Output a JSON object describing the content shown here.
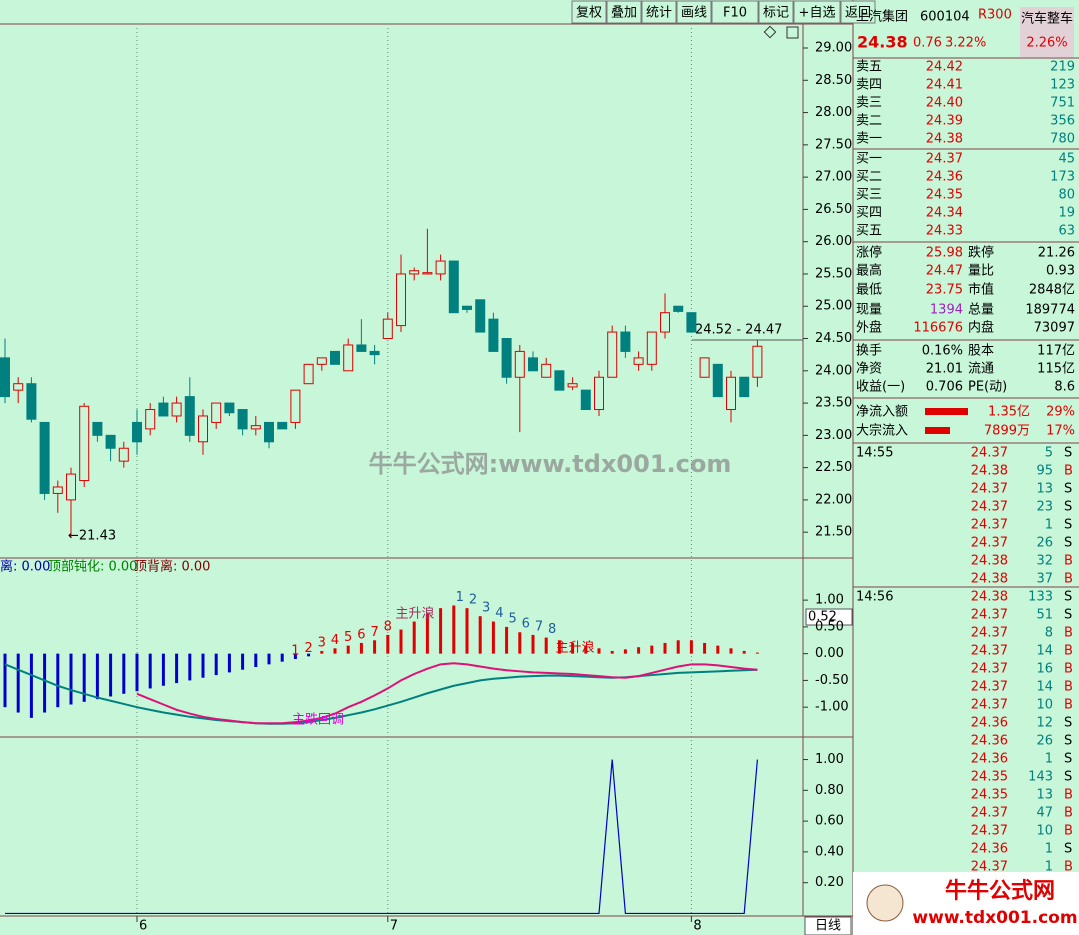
{
  "toolbar": {
    "buttons": [
      "复权",
      "叠加",
      "统计",
      "画线",
      "F10",
      "标记",
      "+自选",
      "返回"
    ]
  },
  "quote": {
    "name": "上汽集团",
    "code": "600104",
    "badge": "R300",
    "sector": "汽车整车",
    "sector_change": "2.26%",
    "price": "24.38",
    "change": "0.76",
    "change_pct": "3.22%"
  },
  "order_book": {
    "asks": [
      [
        "卖五",
        "24.42",
        "219"
      ],
      [
        "卖四",
        "24.41",
        "123"
      ],
      [
        "卖三",
        "24.40",
        "751"
      ],
      [
        "卖二",
        "24.39",
        "356"
      ],
      [
        "卖一",
        "24.38",
        "780"
      ]
    ],
    "bids": [
      [
        "买一",
        "24.37",
        "45"
      ],
      [
        "买二",
        "24.36",
        "173"
      ],
      [
        "买三",
        "24.35",
        "80"
      ],
      [
        "买四",
        "24.34",
        "19"
      ],
      [
        "买五",
        "24.33",
        "63"
      ]
    ]
  },
  "stats": [
    [
      "涨停",
      "25.98",
      "跌停",
      "21.26",
      "#e00000"
    ],
    [
      "最高",
      "24.47",
      "量比",
      "0.93",
      "#e00000"
    ],
    [
      "最低",
      "23.75",
      "市值",
      "2848亿",
      "#e00000"
    ],
    [
      "现量",
      "1394",
      "总量",
      "189774",
      "#a020c0"
    ],
    [
      "外盘",
      "116676",
      "内盘",
      "73097",
      "#e00000"
    ],
    [
      "换手",
      "0.16%",
      "股本",
      "117亿",
      "#000000"
    ],
    [
      "净资",
      "21.01",
      "流通",
      "115亿",
      "#000000"
    ],
    [
      "收益(一)",
      "0.706",
      "PE(动)",
      "8.6",
      "#000000"
    ]
  ],
  "flows": [
    [
      "净流入额",
      "1.35亿",
      "29%"
    ],
    [
      "大宗流入",
      "7899万",
      "17%"
    ]
  ],
  "trades": [
    {
      "time": "14:55",
      "rows": [
        [
          "24.37",
          "5",
          "S"
        ],
        [
          "24.38",
          "95",
          "B"
        ],
        [
          "24.37",
          "13",
          "S"
        ],
        [
          "24.37",
          "23",
          "S"
        ],
        [
          "24.37",
          "1",
          "S"
        ],
        [
          "24.37",
          "26",
          "S"
        ],
        [
          "24.38",
          "32",
          "B"
        ],
        [
          "24.38",
          "37",
          "B"
        ]
      ]
    },
    {
      "time": "14:56",
      "rows": [
        [
          "24.38",
          "133",
          "S"
        ],
        [
          "24.37",
          "51",
          "S"
        ],
        [
          "24.37",
          "8",
          "B"
        ],
        [
          "24.37",
          "14",
          "B"
        ],
        [
          "24.37",
          "16",
          "B"
        ],
        [
          "24.37",
          "14",
          "B"
        ],
        [
          "24.37",
          "10",
          "B"
        ],
        [
          "24.36",
          "12",
          "S"
        ],
        [
          "24.36",
          "26",
          "S"
        ],
        [
          "24.36",
          "1",
          "S"
        ],
        [
          "24.35",
          "143",
          "S"
        ],
        [
          "24.35",
          "13",
          "B"
        ],
        [
          "24.37",
          "47",
          "B"
        ],
        [
          "24.37",
          "10",
          "B"
        ],
        [
          "24.36",
          "1",
          "S"
        ],
        [
          "24.37",
          "1",
          "B"
        ]
      ]
    }
  ],
  "price_chart": {
    "ylim": [
      21.1,
      29.31
    ],
    "yticks": [
      {
        "value": 29,
        "label": "29.00"
      },
      {
        "value": 28.5,
        "label": "28.50"
      },
      {
        "value": 28,
        "label": "28.00"
      },
      {
        "value": 27.5,
        "label": "27.50"
      },
      {
        "value": 27,
        "label": "27.00"
      },
      {
        "value": 26.5,
        "label": "26.50"
      },
      {
        "value": 26,
        "label": "26.00"
      },
      {
        "value": 25.5,
        "label": "25.50"
      },
      {
        "value": 25,
        "label": "25.00"
      },
      {
        "value": 24.5,
        "label": "24.50"
      },
      {
        "value": 24,
        "label": "24.00"
      },
      {
        "value": 23.5,
        "label": "23.50"
      },
      {
        "value": 23,
        "label": "23.00"
      },
      {
        "value": 22.5,
        "label": "22.50"
      },
      {
        "value": 22,
        "label": "22.00"
      },
      {
        "value": 21.5,
        "label": "21.50"
      }
    ],
    "dates": [
      null,
      null,
      null,
      null,
      null,
      null,
      null,
      null,
      null,
      null,
      "6",
      null,
      null,
      null,
      null,
      null,
      null,
      null,
      null,
      null,
      null,
      null,
      null,
      null,
      null,
      null,
      null,
      null,
      null,
      "7",
      null,
      null,
      null,
      null,
      null,
      null,
      null,
      null,
      null,
      null,
      null,
      null,
      null,
      null,
      null,
      null,
      null,
      null,
      null,
      null,
      null,
      null,
      "8",
      null,
      null,
      null,
      null,
      null
    ],
    "candles": [
      [
        24.2,
        24.5,
        23.5,
        23.6
      ],
      [
        23.7,
        23.9,
        23.5,
        23.8
      ],
      [
        23.8,
        23.9,
        23.2,
        23.25
      ],
      [
        23.2,
        23.2,
        22.0,
        22.1
      ],
      [
        22.1,
        22.3,
        21.8,
        22.2
      ],
      [
        22.0,
        22.5,
        21.43,
        22.4
      ],
      [
        22.3,
        23.5,
        22.2,
        23.45
      ],
      [
        23.2,
        23.2,
        22.9,
        23.0
      ],
      [
        23.0,
        23.0,
        22.6,
        22.8
      ],
      [
        22.6,
        22.9,
        22.5,
        22.8
      ],
      [
        23.2,
        23.4,
        22.7,
        22.9
      ],
      [
        23.1,
        23.5,
        23.0,
        23.4
      ],
      [
        23.5,
        23.6,
        23.3,
        23.3
      ],
      [
        23.3,
        23.6,
        23.2,
        23.5
      ],
      [
        23.6,
        23.9,
        22.9,
        23.0
      ],
      [
        22.9,
        23.4,
        22.7,
        23.3
      ],
      [
        23.2,
        23.5,
        23.1,
        23.5
      ],
      [
        23.5,
        23.5,
        23.3,
        23.35
      ],
      [
        23.4,
        23.4,
        23.0,
        23.1
      ],
      [
        23.1,
        23.3,
        23.0,
        23.15
      ],
      [
        23.2,
        23.2,
        22.8,
        22.9
      ],
      [
        23.2,
        23.2,
        23.1,
        23.1
      ],
      [
        23.2,
        23.7,
        23.1,
        23.7
      ],
      [
        23.8,
        24.1,
        23.8,
        24.1
      ],
      [
        24.1,
        24.2,
        24.0,
        24.2
      ],
      [
        24.3,
        24.3,
        24.1,
        24.1
      ],
      [
        24.0,
        24.5,
        24.0,
        24.4
      ],
      [
        24.4,
        24.8,
        24.3,
        24.3
      ],
      [
        24.3,
        24.4,
        24.1,
        24.25
      ],
      [
        24.5,
        24.9,
        24.5,
        24.8
      ],
      [
        24.7,
        25.8,
        24.6,
        25.5
      ],
      [
        25.5,
        25.6,
        25.4,
        25.55
      ],
      [
        25.5,
        26.2,
        25.5,
        25.52
      ],
      [
        25.5,
        25.8,
        25.4,
        25.7
      ],
      [
        25.7,
        25.7,
        24.9,
        24.9
      ],
      [
        25.0,
        25.0,
        24.9,
        24.95
      ],
      [
        25.1,
        25.1,
        24.6,
        24.6
      ],
      [
        24.8,
        24.9,
        24.3,
        24.3
      ],
      [
        24.5,
        24.5,
        23.8,
        23.9
      ],
      [
        23.9,
        24.4,
        23.05,
        24.3
      ],
      [
        24.2,
        24.3,
        24.0,
        24.0
      ],
      [
        23.9,
        24.2,
        23.9,
        24.1
      ],
      [
        24.0,
        24.0,
        23.7,
        23.7
      ],
      [
        23.75,
        23.9,
        23.7,
        23.8
      ],
      [
        23.7,
        23.7,
        23.4,
        23.4
      ],
      [
        23.4,
        24.0,
        23.3,
        23.9
      ],
      [
        23.9,
        24.7,
        23.9,
        24.6
      ],
      [
        24.6,
        24.7,
        24.2,
        24.3
      ],
      [
        24.1,
        24.3,
        24.0,
        24.2
      ],
      [
        24.1,
        24.6,
        24.0,
        24.6
      ],
      [
        24.6,
        25.2,
        24.5,
        24.9
      ],
      [
        25.0,
        25.0,
        24.9,
        24.92
      ],
      [
        24.9,
        24.9,
        24.6,
        24.6
      ],
      [
        23.9,
        24.2,
        23.9,
        24.2
      ],
      [
        24.1,
        24.1,
        23.6,
        23.6
      ],
      [
        23.4,
        24.0,
        23.2,
        23.9
      ],
      [
        23.9,
        23.9,
        23.6,
        23.6
      ],
      [
        23.9,
        24.47,
        23.75,
        24.38
      ]
    ],
    "up_color": "#e00000",
    "down_color": "#00807f",
    "low_label": "←21.43",
    "range_label": "24.52 - 24.47",
    "watermark": "牛牛公式网:www.tdx001.com"
  },
  "macd_panel": {
    "legend": [
      "离: 0.00",
      "顶部钝化: 0.00",
      "顶背离: 0.00"
    ],
    "ylim": [
      -1.52,
      1.75
    ],
    "yticks": [
      {
        "value": 1,
        "label": "1.00"
      },
      {
        "value": 0.5,
        "label": "0.50"
      },
      {
        "value": 0,
        "label": "0.00"
      },
      {
        "value": -0.5,
        "label": "-0.50"
      },
      {
        "value": -1,
        "label": "-1.00"
      }
    ],
    "histogram": [
      -1.0,
      -1.1,
      -1.2,
      -1.1,
      -1.0,
      -0.95,
      -0.9,
      -0.85,
      -0.8,
      -0.75,
      -0.7,
      -0.65,
      -0.6,
      -0.55,
      -0.5,
      -0.45,
      -0.4,
      -0.35,
      -0.3,
      -0.25,
      -0.2,
      -0.15,
      -0.1,
      -0.05,
      0.05,
      0.1,
      0.15,
      0.2,
      0.25,
      0.35,
      0.45,
      0.6,
      0.75,
      0.85,
      0.9,
      0.85,
      0.7,
      0.6,
      0.5,
      0.4,
      0.35,
      0.3,
      0.25,
      0.2,
      0.15,
      0.1,
      0.05,
      0.08,
      0.12,
      0.15,
      0.2,
      0.25,
      0.25,
      0.2,
      0.15,
      0.1,
      0.05,
      0.02
    ],
    "dif": [
      null,
      null,
      null,
      null,
      null,
      null,
      null,
      null,
      null,
      null,
      -0.75,
      -0.85,
      -0.95,
      -1.05,
      -1.12,
      -1.18,
      -1.22,
      -1.25,
      -1.28,
      -1.3,
      -1.3,
      -1.3,
      -1.28,
      -1.25,
      -1.2,
      -1.12,
      -1.0,
      -0.9,
      -0.78,
      -0.65,
      -0.5,
      -0.38,
      -0.28,
      -0.2,
      -0.18,
      -0.2,
      -0.24,
      -0.28,
      -0.31,
      -0.33,
      -0.35,
      -0.36,
      -0.37,
      -0.38,
      -0.4,
      -0.42,
      -0.44,
      -0.45,
      -0.42,
      -0.36,
      -0.3,
      -0.24,
      -0.2,
      -0.2,
      -0.22,
      -0.25,
      -0.28,
      -0.3
    ],
    "dea": [
      -0.2,
      -0.3,
      -0.4,
      -0.5,
      -0.6,
      -0.68,
      -0.75,
      -0.82,
      -0.88,
      -0.94,
      -1.0,
      -1.05,
      -1.1,
      -1.14,
      -1.18,
      -1.21,
      -1.24,
      -1.26,
      -1.28,
      -1.3,
      -1.31,
      -1.31,
      -1.3,
      -1.28,
      -1.24,
      -1.2,
      -1.15,
      -1.1,
      -1.04,
      -0.97,
      -0.9,
      -0.82,
      -0.74,
      -0.67,
      -0.6,
      -0.55,
      -0.5,
      -0.47,
      -0.45,
      -0.43,
      -0.42,
      -0.41,
      -0.41,
      -0.42,
      -0.43,
      -0.44,
      -0.45,
      -0.44,
      -0.42,
      -0.4,
      -0.38,
      -0.36,
      -0.35,
      -0.34,
      -0.33,
      -0.32,
      -0.31,
      -0.3
    ],
    "dif_color": "#e0107a",
    "dea_color": "#00807f",
    "up_color": "#e00000",
    "down_color": "#0000cc",
    "current_label": "0.52",
    "wave_counts_1": [
      "1",
      "2",
      "3",
      "4",
      "5",
      "6",
      "7",
      "8"
    ],
    "wave_counts_2": [
      "1",
      "2",
      "3",
      "4",
      "5",
      "6",
      "7",
      "8"
    ],
    "annotations": [
      "主升浪",
      "主升浪",
      "主跌回调"
    ]
  },
  "signal_panel": {
    "ylim": [
      -0.01,
      1.14
    ],
    "yticks": [
      {
        "value": 1,
        "label": "1.00"
      },
      {
        "value": 0.8,
        "label": "0.80"
      },
      {
        "value": 0.6,
        "label": "0.60"
      },
      {
        "value": 0.4,
        "label": "0.40"
      },
      {
        "value": 0.2,
        "label": "0.20"
      }
    ],
    "values": [
      0,
      0,
      0,
      0,
      0,
      0,
      0,
      0,
      0,
      0,
      0,
      0,
      0,
      0,
      0,
      0,
      0,
      0,
      0,
      0,
      0,
      0,
      0,
      0,
      0,
      0,
      0,
      0,
      0,
      0,
      0,
      0,
      0,
      0,
      0,
      0,
      0,
      0,
      0,
      0,
      0,
      0,
      0,
      0,
      0,
      0,
      1,
      0,
      0,
      0,
      0,
      0,
      0,
      0,
      0,
      0,
      0,
      1
    ],
    "color": "#0000cc"
  },
  "period_label": "日线",
  "logo": {
    "title": "牛牛公式网",
    "url": "www.tdx001.com"
  }
}
